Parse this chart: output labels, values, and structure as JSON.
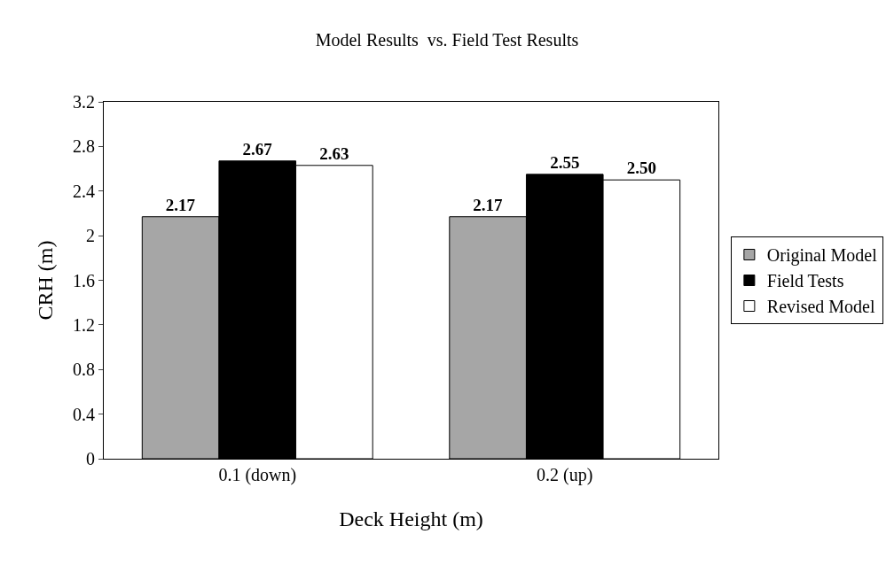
{
  "chart_data": {
    "type": "bar",
    "title": "Model Results  vs. Field Test Results",
    "xlabel": "Deck Height (m)",
    "ylabel": "CRH (m)",
    "categories": [
      "0.1 (down)",
      "0.2 (up)"
    ],
    "series": [
      {
        "name": "Original Model",
        "color": "#a6a6a6",
        "values": [
          2.17,
          2.17
        ],
        "value_labels": [
          "2.17",
          "2.17"
        ]
      },
      {
        "name": "Field Tests",
        "color": "#000000",
        "values": [
          2.67,
          2.55
        ],
        "value_labels": [
          "2.67",
          "2.55"
        ]
      },
      {
        "name": "Revised Model",
        "color": "#ffffff",
        "values": [
          2.63,
          2.5
        ],
        "value_labels": [
          "2.63",
          "2.50"
        ]
      }
    ],
    "ylim": [
      0,
      3.2
    ],
    "yticks": [
      0,
      0.4,
      0.8,
      1.2,
      1.6,
      2,
      2.4,
      2.8,
      3.2
    ],
    "grid": false,
    "legend": "right"
  }
}
